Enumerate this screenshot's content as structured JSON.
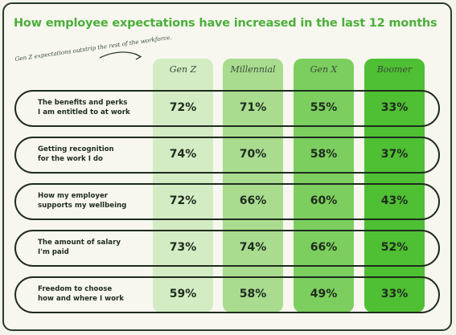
{
  "chart_data": {
    "type": "table",
    "title": "How employee expectations have increased in the last 12 months",
    "annotation": "Gen Z expectations outstrip the rest of the workforce.",
    "columns": [
      "Gen Z",
      "Millennial",
      "Gen X",
      "Boomer"
    ],
    "column_colors": [
      "#d3ecc4",
      "#a9dc8f",
      "#7ccf5e",
      "#4fbf33"
    ],
    "rows": [
      {
        "label_line1": "The benefits and perks",
        "label_line2": "I am entitled to at work",
        "values": [
          "72%",
          "71%",
          "55%",
          "33%"
        ]
      },
      {
        "label_line1": "Getting recognition",
        "label_line2": "for the work I do",
        "values": [
          "74%",
          "70%",
          "58%",
          "37%"
        ]
      },
      {
        "label_line1": "How my employer",
        "label_line2": "supports my wellbeing",
        "values": [
          "72%",
          "66%",
          "60%",
          "43%"
        ]
      },
      {
        "label_line1": "The amount of salary",
        "label_line2": "I'm paid",
        "values": [
          "73%",
          "74%",
          "66%",
          "52%"
        ]
      },
      {
        "label_line1": "Freedom to choose",
        "label_line2": "how and where I work",
        "values": [
          "59%",
          "58%",
          "49%",
          "33%"
        ]
      }
    ]
  }
}
